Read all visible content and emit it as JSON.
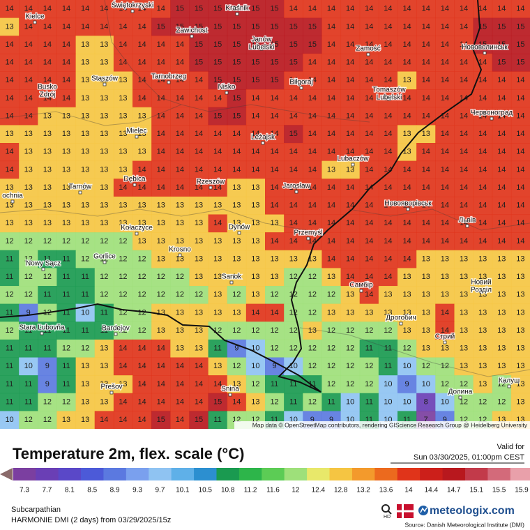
{
  "map": {
    "grid": [
      [
        14,
        14,
        14,
        14,
        14,
        14,
        14,
        14,
        14,
        15,
        15,
        15,
        15,
        15,
        15,
        14,
        14,
        14,
        14,
        14,
        14,
        14,
        14,
        14,
        14,
        14,
        14,
        14
      ],
      [
        13,
        14,
        14,
        14,
        14,
        14,
        14,
        14,
        15,
        15,
        15,
        15,
        15,
        15,
        15,
        15,
        15,
        14,
        14,
        14,
        14,
        14,
        14,
        14,
        14,
        15,
        15,
        15
      ],
      [
        14,
        14,
        14,
        14,
        13,
        13,
        14,
        14,
        14,
        14,
        15,
        15,
        15,
        15,
        15,
        15,
        15,
        14,
        14,
        14,
        14,
        14,
        14,
        14,
        14,
        15,
        15,
        15
      ],
      [
        14,
        14,
        14,
        14,
        13,
        13,
        14,
        14,
        14,
        14,
        15,
        15,
        15,
        15,
        15,
        15,
        14,
        14,
        14,
        14,
        14,
        14,
        14,
        14,
        14,
        14,
        15,
        15
      ],
      [
        14,
        14,
        14,
        14,
        13,
        13,
        13,
        14,
        14,
        14,
        14,
        15,
        15,
        15,
        15,
        14,
        14,
        14,
        14,
        14,
        14,
        13,
        14,
        14,
        14,
        14,
        14,
        14
      ],
      [
        14,
        14,
        14,
        14,
        13,
        13,
        13,
        14,
        14,
        14,
        14,
        14,
        15,
        14,
        14,
        14,
        14,
        14,
        14,
        14,
        14,
        14,
        14,
        14,
        14,
        14,
        14,
        14
      ],
      [
        14,
        14,
        13,
        13,
        13,
        13,
        13,
        13,
        14,
        14,
        14,
        15,
        15,
        14,
        14,
        14,
        14,
        14,
        14,
        14,
        14,
        14,
        14,
        14,
        14,
        14,
        14,
        14
      ],
      [
        13,
        13,
        13,
        13,
        13,
        13,
        13,
        13,
        14,
        14,
        14,
        14,
        14,
        14,
        14,
        15,
        14,
        14,
        14,
        14,
        14,
        13,
        13,
        14,
        14,
        14,
        14,
        14
      ],
      [
        14,
        13,
        13,
        13,
        13,
        13,
        13,
        13,
        14,
        14,
        14,
        14,
        14,
        14,
        14,
        14,
        14,
        14,
        14,
        14,
        14,
        13,
        14,
        14,
        14,
        14,
        14,
        14
      ],
      [
        14,
        13,
        13,
        13,
        13,
        13,
        13,
        14,
        14,
        14,
        14,
        14,
        14,
        14,
        14,
        14,
        14,
        13,
        13,
        14,
        14,
        14,
        14,
        14,
        14,
        14,
        14,
        14
      ],
      [
        13,
        13,
        13,
        13,
        13,
        13,
        14,
        14,
        14,
        14,
        14,
        14,
        13,
        13,
        14,
        14,
        14,
        14,
        14,
        14,
        14,
        14,
        14,
        14,
        14,
        14,
        14,
        14
      ],
      [
        13,
        13,
        13,
        13,
        13,
        13,
        13,
        13,
        13,
        13,
        13,
        13,
        13,
        13,
        14,
        14,
        14,
        14,
        14,
        14,
        14,
        14,
        14,
        14,
        14,
        14,
        14,
        14
      ],
      [
        13,
        13,
        13,
        13,
        13,
        13,
        13,
        13,
        13,
        13,
        13,
        14,
        13,
        13,
        13,
        14,
        14,
        14,
        14,
        14,
        14,
        14,
        14,
        14,
        14,
        14,
        14,
        14
      ],
      [
        12,
        12,
        12,
        12,
        12,
        12,
        12,
        13,
        13,
        13,
        13,
        13,
        13,
        13,
        14,
        14,
        14,
        14,
        14,
        14,
        14,
        14,
        14,
        14,
        14,
        14,
        14,
        14
      ],
      [
        11,
        12,
        11,
        11,
        12,
        12,
        12,
        12,
        13,
        13,
        13,
        13,
        13,
        13,
        13,
        13,
        13,
        14,
        14,
        14,
        14,
        14,
        13,
        13,
        13,
        13,
        13,
        13
      ],
      [
        11,
        12,
        12,
        11,
        11,
        12,
        12,
        12,
        12,
        12,
        13,
        13,
        13,
        13,
        13,
        12,
        12,
        13,
        14,
        14,
        14,
        13,
        13,
        13,
        13,
        13,
        13,
        13
      ],
      [
        12,
        12,
        11,
        11,
        11,
        12,
        12,
        12,
        12,
        12,
        12,
        13,
        12,
        13,
        12,
        12,
        12,
        12,
        13,
        14,
        13,
        13,
        13,
        13,
        13,
        13,
        13,
        13
      ],
      [
        11,
        9,
        12,
        11,
        10,
        11,
        12,
        12,
        13,
        13,
        13,
        13,
        13,
        14,
        14,
        12,
        12,
        13,
        13,
        13,
        13,
        13,
        13,
        14,
        13,
        13,
        13,
        13
      ],
      [
        12,
        11,
        11,
        11,
        11,
        11,
        12,
        12,
        13,
        13,
        13,
        12,
        12,
        12,
        12,
        12,
        13,
        12,
        12,
        12,
        12,
        13,
        13,
        14,
        13,
        13,
        13,
        13
      ],
      [
        11,
        11,
        11,
        12,
        12,
        13,
        14,
        14,
        14,
        13,
        13,
        11,
        9,
        10,
        12,
        12,
        12,
        12,
        12,
        11,
        11,
        12,
        13,
        13,
        13,
        13,
        13,
        13
      ],
      [
        11,
        10,
        9,
        11,
        13,
        13,
        14,
        14,
        14,
        14,
        14,
        13,
        12,
        10,
        9,
        10,
        12,
        12,
        12,
        12,
        11,
        10,
        12,
        12,
        13,
        13,
        13,
        13
      ],
      [
        11,
        11,
        9,
        11,
        13,
        13,
        13,
        14,
        14,
        14,
        14,
        14,
        13,
        12,
        11,
        11,
        11,
        12,
        12,
        12,
        10,
        9,
        10,
        12,
        12,
        13,
        12,
        13
      ],
      [
        11,
        11,
        12,
        12,
        13,
        13,
        14,
        14,
        14,
        14,
        14,
        15,
        14,
        13,
        12,
        11,
        12,
        11,
        10,
        11,
        10,
        10,
        8,
        10,
        12,
        12,
        12,
        13
      ],
      [
        10,
        12,
        12,
        13,
        13,
        14,
        14,
        14,
        15,
        14,
        15,
        11,
        12,
        12,
        11,
        10,
        9,
        9,
        10,
        11,
        10,
        11,
        7,
        9,
        12,
        12,
        13,
        13
      ]
    ],
    "cities": [
      [
        "Kielce"
      ],
      [
        "Świętokrzyski"
      ],
      [
        "Kraśnik"
      ],
      [
        "Zawichost"
      ],
      [
        "Janów",
        "Lubelski"
      ],
      [
        "Zamość"
      ],
      [
        "Нововолинськ"
      ],
      [
        "Staszów"
      ],
      [
        "Tarnobrzeg"
      ],
      [
        "Nisko"
      ],
      [
        "Biłgoraj"
      ],
      [
        "Busko",
        "Zdrój"
      ],
      [
        "Tomaszów",
        "Lubelski"
      ],
      [
        "Червоноград"
      ],
      [
        "Mielec"
      ],
      [
        "Leżajsk"
      ],
      [
        "Lubaczów"
      ],
      [
        "Tarnów"
      ],
      [
        "Dębica"
      ],
      [
        "Rzeszów"
      ],
      [
        "Jarosław"
      ],
      [
        "Новояворівськ"
      ],
      [
        "ochnia"
      ],
      [
        "Kołaczyce"
      ],
      [
        "Dynów"
      ],
      [
        "Przemyśl"
      ],
      [
        "Львів"
      ],
      [
        "Krosno"
      ],
      [
        "Gorlice"
      ],
      [
        "Nowy Sącz"
      ],
      [
        "Sanok"
      ],
      [
        "Самбір"
      ],
      [
        "Новий",
        "Розділ"
      ],
      [
        "Stara Ľubovňa"
      ],
      [
        "Bardejov"
      ],
      [
        "Дрогобич"
      ],
      [
        "Стрий"
      ],
      [
        "Prešov"
      ],
      [
        "Snina"
      ],
      [
        "Долина"
      ],
      [
        "Калуш"
      ]
    ],
    "attribution": "Map data © OpenStreetMap contributors, rendering GIScience Research Group @ Heidelberg University"
  },
  "header": {
    "title": "Temperature 2m, flex. scale (°C)",
    "valid_label": "Valid for",
    "valid_time": "Sun 03/30/2025, 01:00pm CEST"
  },
  "legend": {
    "ticks": [
      7.3,
      7.7,
      8.1,
      8.5,
      8.9,
      9.3,
      9.7,
      10.1,
      10.5,
      10.8,
      11.2,
      11.6,
      12,
      12.4,
      12.8,
      13.2,
      13.6,
      14,
      14.4,
      14.7,
      15.1,
      15.5,
      15.9
    ],
    "colors": [
      "#7b3fa0",
      "#6a3fb5",
      "#5a48c8",
      "#4c5ad8",
      "#5b79e0",
      "#7aa0ee",
      "#8fc3f2",
      "#5fb0e8",
      "#2c8fd0",
      "#1a9a50",
      "#2db54a",
      "#5ccc55",
      "#9ee07a",
      "#e8e86a",
      "#f5c542",
      "#f39a2c",
      "#ec6a1e",
      "#e0341a",
      "#cc1f1a",
      "#b8181e",
      "#c23a4a",
      "#d36a7a",
      "#e9a0aa"
    ]
  },
  "footer": {
    "region": "Subcarpathian",
    "model": "HARMONIE DMI (2 days) from  03/29/2025/15z",
    "hd": "HD",
    "brand": "meteologix.com",
    "source": "Source: Danish Meteorological Institute (DMI)"
  }
}
